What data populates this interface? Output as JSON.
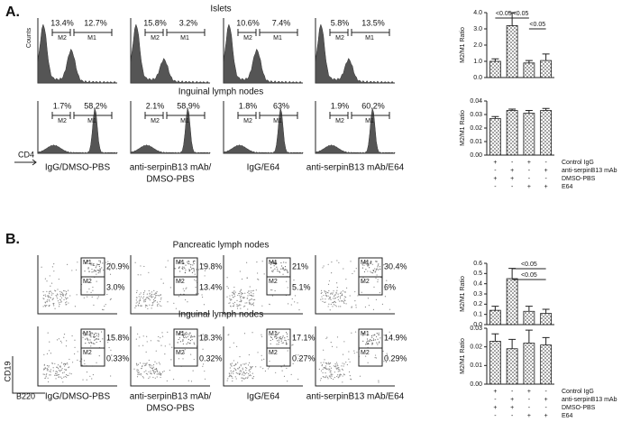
{
  "chart_data": [
    {
      "type": "bar",
      "ylabel": "M2/M1 Ratio",
      "values": [
        1.0,
        3.2,
        0.9,
        1.05
      ],
      "errors": [
        0.15,
        0.8,
        0.15,
        0.4
      ],
      "ylim": [
        0,
        4
      ],
      "yticks": [
        {
          "value": 0,
          "label": "0.0"
        },
        {
          "value": 1,
          "label": "1.0"
        },
        {
          "value": 2,
          "label": "2.0"
        },
        {
          "value": 3,
          "label": "3.0"
        },
        {
          "value": 4,
          "label": "4.0"
        }
      ],
      "annotations": [
        "<0.05",
        "<0.05",
        "<0.05"
      ]
    },
    {
      "type": "bar",
      "ylabel": "M2/M1 Ratio",
      "values": [
        0.027,
        0.033,
        0.031,
        0.033
      ],
      "errors": [
        0.0015,
        0.001,
        0.002,
        0.0015
      ],
      "ylim": [
        0,
        0.04
      ],
      "yticks": [
        {
          "value": 0,
          "label": "0.00"
        },
        {
          "value": 0.01,
          "label": "0.01"
        },
        {
          "value": 0.02,
          "label": "0.02"
        },
        {
          "value": 0.03,
          "label": "0.03"
        },
        {
          "value": 0.04,
          "label": "0.04"
        }
      ]
    },
    {
      "type": "bar",
      "ylabel": "M2/M1 Ratio",
      "values": [
        0.14,
        0.45,
        0.13,
        0.11
      ],
      "errors": [
        0.04,
        0.1,
        0.05,
        0.04
      ],
      "ylim": [
        0,
        0.6
      ],
      "yticks": [
        {
          "value": 0,
          "label": "0.0"
        },
        0.1,
        0.2,
        0.3,
        0.4,
        0.5,
        0.6
      ],
      "annotations": [
        "<0.05",
        "<0.05"
      ]
    },
    {
      "type": "bar",
      "ylabel": "M2/M1 Ratio",
      "values": [
        0.023,
        0.019,
        0.022,
        0.021
      ],
      "errors": [
        0.004,
        0.005,
        0.007,
        0.004
      ],
      "ylim": [
        0,
        0.03
      ],
      "yticks": [
        {
          "value": 0,
          "label": "0.00"
        },
        0.01,
        0.02,
        0.03
      ]
    }
  ],
  "treatment_key": [
    {
      "label": "Control IgG",
      "signs": [
        "+",
        "-",
        "+",
        "-"
      ]
    },
    {
      "label": "anti-serpinB13 mAb",
      "signs": [
        "-",
        "+",
        "-",
        "+"
      ]
    },
    {
      "label": "DMSO-PBS",
      "signs": [
        "+",
        "+",
        "-",
        "-"
      ]
    },
    {
      "label": "E64",
      "signs": [
        "-",
        "-",
        "+",
        "+"
      ]
    }
  ],
  "columns": [
    [
      "IgG/DMSO-PBS"
    ],
    [
      "anti-serpinB13 mAb/",
      "DMSO-PBS"
    ],
    [
      "IgG/E64"
    ],
    [
      "anti-serpinB13 mAb/E64"
    ]
  ],
  "panel_a": {
    "letter": "A.",
    "x_axis": "CD4",
    "y_axis": "Counts",
    "gate_labels": [
      "M2",
      "M1"
    ],
    "rows": [
      {
        "title": "Islets",
        "gates": [
          [
            "13.4%",
            "12.7%"
          ],
          [
            "15.8%",
            "3.2%"
          ],
          [
            "10.6%",
            "7.4%"
          ],
          [
            "5.8%",
            "13.5%"
          ]
        ]
      },
      {
        "title": "Inguinal lymph nodes",
        "gates": [
          [
            "1.7%",
            "58.2%"
          ],
          [
            "2.1%",
            "58.9%"
          ],
          [
            "1.8%",
            "63%"
          ],
          [
            "1.9%",
            "60.2%"
          ]
        ]
      }
    ]
  },
  "panel_b": {
    "letter": "B.",
    "x_axis": "B220",
    "y_axis": "CD19",
    "gate_labels": [
      "M1",
      "M2"
    ],
    "rows": [
      {
        "title": "Pancreatic lymph nodes",
        "gates": [
          [
            "20.9%",
            "3.0%"
          ],
          [
            "19.8%",
            "13.4%"
          ],
          [
            "21%",
            "5.1%"
          ],
          [
            "30.4%",
            "6%"
          ]
        ]
      },
      {
        "title": "Inguinal lymph nodes",
        "gates": [
          [
            "15.8%",
            "0.33%"
          ],
          [
            "18.3%",
            "0.32%"
          ],
          [
            "17.1%",
            "0.27%"
          ],
          [
            "14.9%",
            "0.29%"
          ]
        ]
      }
    ]
  }
}
